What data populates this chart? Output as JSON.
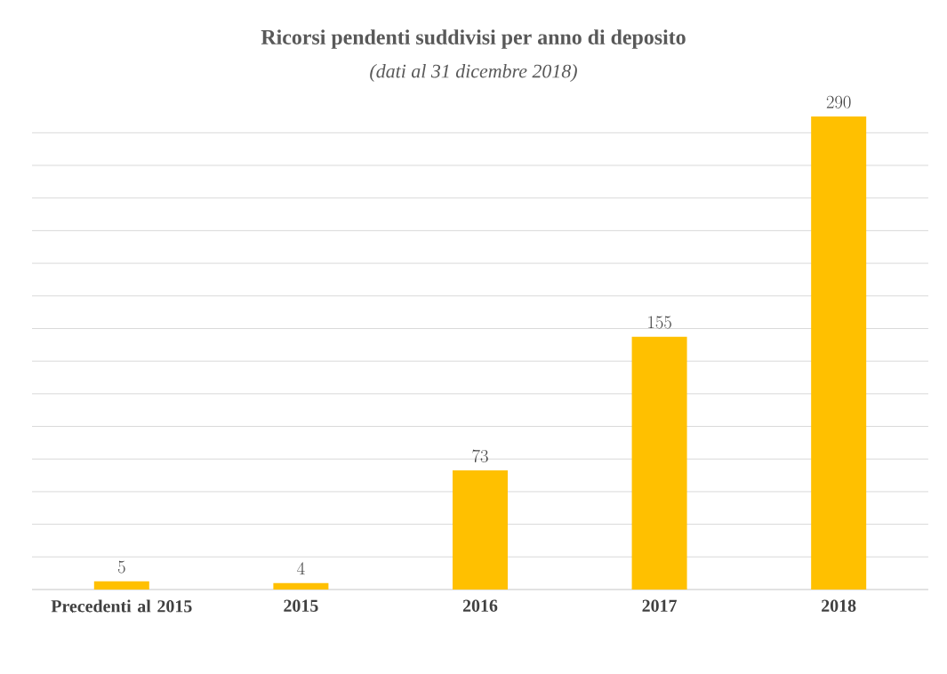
{
  "chart_data": {
    "type": "bar",
    "title": "Ricorsi pendenti suddivisi per anno di deposito",
    "subtitle": "(dati al 31 dicembre 2018)",
    "categories": [
      "Precedenti al 2015",
      "2015",
      "2016",
      "2017",
      "2018"
    ],
    "values": [
      5,
      4,
      73,
      155,
      290
    ],
    "color": "#ffc000",
    "grid": "y",
    "tick_labels": "x",
    "data_labels": true
  }
}
